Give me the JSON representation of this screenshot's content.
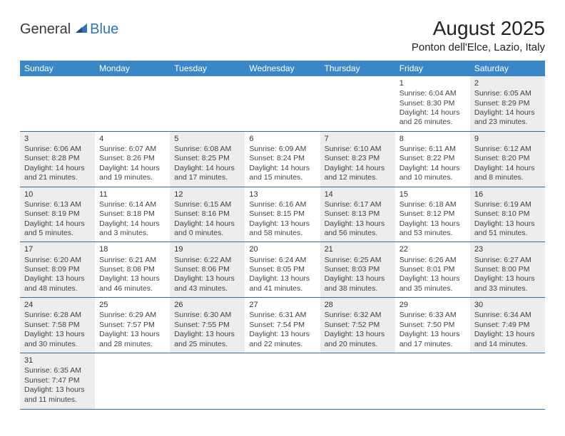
{
  "brand": {
    "general": "General",
    "blue": "Blue"
  },
  "title": "August 2025",
  "location": "Ponton dell'Elce, Lazio, Italy",
  "colors": {
    "header_bg": "#3a87c7",
    "header_fg": "#ffffff",
    "row_border": "#2e6ea8",
    "shade_bg": "#ededed",
    "brand_blue": "#2e74b5"
  },
  "weekdays": [
    "Sunday",
    "Monday",
    "Tuesday",
    "Wednesday",
    "Thursday",
    "Friday",
    "Saturday"
  ],
  "weeks": [
    [
      {
        "empty": true
      },
      {
        "empty": true
      },
      {
        "empty": true
      },
      {
        "empty": true
      },
      {
        "empty": true
      },
      {
        "day": "1",
        "shade": false,
        "sunrise": "Sunrise: 6:04 AM",
        "sunset": "Sunset: 8:30 PM",
        "day1": "Daylight: 14 hours",
        "day2": "and 26 minutes."
      },
      {
        "day": "2",
        "shade": true,
        "sunrise": "Sunrise: 6:05 AM",
        "sunset": "Sunset: 8:29 PM",
        "day1": "Daylight: 14 hours",
        "day2": "and 23 minutes."
      }
    ],
    [
      {
        "day": "3",
        "shade": true,
        "sunrise": "Sunrise: 6:06 AM",
        "sunset": "Sunset: 8:28 PM",
        "day1": "Daylight: 14 hours",
        "day2": "and 21 minutes."
      },
      {
        "day": "4",
        "shade": false,
        "sunrise": "Sunrise: 6:07 AM",
        "sunset": "Sunset: 8:26 PM",
        "day1": "Daylight: 14 hours",
        "day2": "and 19 minutes."
      },
      {
        "day": "5",
        "shade": true,
        "sunrise": "Sunrise: 6:08 AM",
        "sunset": "Sunset: 8:25 PM",
        "day1": "Daylight: 14 hours",
        "day2": "and 17 minutes."
      },
      {
        "day": "6",
        "shade": false,
        "sunrise": "Sunrise: 6:09 AM",
        "sunset": "Sunset: 8:24 PM",
        "day1": "Daylight: 14 hours",
        "day2": "and 15 minutes."
      },
      {
        "day": "7",
        "shade": true,
        "sunrise": "Sunrise: 6:10 AM",
        "sunset": "Sunset: 8:23 PM",
        "day1": "Daylight: 14 hours",
        "day2": "and 12 minutes."
      },
      {
        "day": "8",
        "shade": false,
        "sunrise": "Sunrise: 6:11 AM",
        "sunset": "Sunset: 8:22 PM",
        "day1": "Daylight: 14 hours",
        "day2": "and 10 minutes."
      },
      {
        "day": "9",
        "shade": true,
        "sunrise": "Sunrise: 6:12 AM",
        "sunset": "Sunset: 8:20 PM",
        "day1": "Daylight: 14 hours",
        "day2": "and 8 minutes."
      }
    ],
    [
      {
        "day": "10",
        "shade": true,
        "sunrise": "Sunrise: 6:13 AM",
        "sunset": "Sunset: 8:19 PM",
        "day1": "Daylight: 14 hours",
        "day2": "and 5 minutes."
      },
      {
        "day": "11",
        "shade": false,
        "sunrise": "Sunrise: 6:14 AM",
        "sunset": "Sunset: 8:18 PM",
        "day1": "Daylight: 14 hours",
        "day2": "and 3 minutes."
      },
      {
        "day": "12",
        "shade": true,
        "sunrise": "Sunrise: 6:15 AM",
        "sunset": "Sunset: 8:16 PM",
        "day1": "Daylight: 14 hours",
        "day2": "and 0 minutes."
      },
      {
        "day": "13",
        "shade": false,
        "sunrise": "Sunrise: 6:16 AM",
        "sunset": "Sunset: 8:15 PM",
        "day1": "Daylight: 13 hours",
        "day2": "and 58 minutes."
      },
      {
        "day": "14",
        "shade": true,
        "sunrise": "Sunrise: 6:17 AM",
        "sunset": "Sunset: 8:13 PM",
        "day1": "Daylight: 13 hours",
        "day2": "and 56 minutes."
      },
      {
        "day": "15",
        "shade": false,
        "sunrise": "Sunrise: 6:18 AM",
        "sunset": "Sunset: 8:12 PM",
        "day1": "Daylight: 13 hours",
        "day2": "and 53 minutes."
      },
      {
        "day": "16",
        "shade": true,
        "sunrise": "Sunrise: 6:19 AM",
        "sunset": "Sunset: 8:10 PM",
        "day1": "Daylight: 13 hours",
        "day2": "and 51 minutes."
      }
    ],
    [
      {
        "day": "17",
        "shade": true,
        "sunrise": "Sunrise: 6:20 AM",
        "sunset": "Sunset: 8:09 PM",
        "day1": "Daylight: 13 hours",
        "day2": "and 48 minutes."
      },
      {
        "day": "18",
        "shade": false,
        "sunrise": "Sunrise: 6:21 AM",
        "sunset": "Sunset: 8:08 PM",
        "day1": "Daylight: 13 hours",
        "day2": "and 46 minutes."
      },
      {
        "day": "19",
        "shade": true,
        "sunrise": "Sunrise: 6:22 AM",
        "sunset": "Sunset: 8:06 PM",
        "day1": "Daylight: 13 hours",
        "day2": "and 43 minutes."
      },
      {
        "day": "20",
        "shade": false,
        "sunrise": "Sunrise: 6:24 AM",
        "sunset": "Sunset: 8:05 PM",
        "day1": "Daylight: 13 hours",
        "day2": "and 41 minutes."
      },
      {
        "day": "21",
        "shade": true,
        "sunrise": "Sunrise: 6:25 AM",
        "sunset": "Sunset: 8:03 PM",
        "day1": "Daylight: 13 hours",
        "day2": "and 38 minutes."
      },
      {
        "day": "22",
        "shade": false,
        "sunrise": "Sunrise: 6:26 AM",
        "sunset": "Sunset: 8:01 PM",
        "day1": "Daylight: 13 hours",
        "day2": "and 35 minutes."
      },
      {
        "day": "23",
        "shade": true,
        "sunrise": "Sunrise: 6:27 AM",
        "sunset": "Sunset: 8:00 PM",
        "day1": "Daylight: 13 hours",
        "day2": "and 33 minutes."
      }
    ],
    [
      {
        "day": "24",
        "shade": true,
        "sunrise": "Sunrise: 6:28 AM",
        "sunset": "Sunset: 7:58 PM",
        "day1": "Daylight: 13 hours",
        "day2": "and 30 minutes."
      },
      {
        "day": "25",
        "shade": false,
        "sunrise": "Sunrise: 6:29 AM",
        "sunset": "Sunset: 7:57 PM",
        "day1": "Daylight: 13 hours",
        "day2": "and 28 minutes."
      },
      {
        "day": "26",
        "shade": true,
        "sunrise": "Sunrise: 6:30 AM",
        "sunset": "Sunset: 7:55 PM",
        "day1": "Daylight: 13 hours",
        "day2": "and 25 minutes."
      },
      {
        "day": "27",
        "shade": false,
        "sunrise": "Sunrise: 6:31 AM",
        "sunset": "Sunset: 7:54 PM",
        "day1": "Daylight: 13 hours",
        "day2": "and 22 minutes."
      },
      {
        "day": "28",
        "shade": true,
        "sunrise": "Sunrise: 6:32 AM",
        "sunset": "Sunset: 7:52 PM",
        "day1": "Daylight: 13 hours",
        "day2": "and 20 minutes."
      },
      {
        "day": "29",
        "shade": false,
        "sunrise": "Sunrise: 6:33 AM",
        "sunset": "Sunset: 7:50 PM",
        "day1": "Daylight: 13 hours",
        "day2": "and 17 minutes."
      },
      {
        "day": "30",
        "shade": true,
        "sunrise": "Sunrise: 6:34 AM",
        "sunset": "Sunset: 7:49 PM",
        "day1": "Daylight: 13 hours",
        "day2": "and 14 minutes."
      }
    ],
    [
      {
        "day": "31",
        "shade": true,
        "sunrise": "Sunrise: 6:35 AM",
        "sunset": "Sunset: 7:47 PM",
        "day1": "Daylight: 13 hours",
        "day2": "and 11 minutes."
      },
      {
        "empty": true
      },
      {
        "empty": true
      },
      {
        "empty": true
      },
      {
        "empty": true
      },
      {
        "empty": true
      },
      {
        "empty": true
      }
    ]
  ]
}
